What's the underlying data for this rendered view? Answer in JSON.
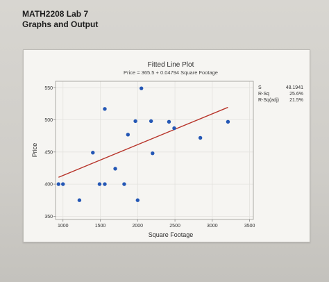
{
  "header": {
    "title": "MATH2208 Lab 7",
    "subtitle": "Graphs and Output"
  },
  "chart_data": {
    "type": "scatter",
    "title": "Fitted Line Plot",
    "subtitle": "Price = 365.5 + 0.04794 Square Footage",
    "xlabel": "Square Footage",
    "ylabel": "Price",
    "xlim": [
      900,
      3550
    ],
    "ylim": [
      345,
      560
    ],
    "xticks": [
      "1000",
      "1500",
      "2000",
      "2500",
      "3000",
      "3500"
    ],
    "xtick_values": [
      1000,
      1500,
      2000,
      2500,
      3000,
      3500
    ],
    "yticks": [
      "350",
      "400",
      "450",
      "500",
      "550"
    ],
    "ytick_values": [
      350,
      400,
      450,
      500,
      550
    ],
    "grid": true,
    "points": {
      "x": [
        940,
        1000,
        1220,
        1400,
        1490,
        1560,
        1560,
        1700,
        1820,
        1870,
        1970,
        2000,
        2050,
        2180,
        2200,
        2420,
        2490,
        2840,
        3210
      ],
      "y": [
        400,
        400,
        375,
        449,
        400,
        400,
        517,
        424,
        400,
        477,
        498,
        375,
        549,
        498,
        448,
        497,
        487,
        472,
        497
      ],
      "color": "#2457b5"
    },
    "fit_line": {
      "x": [
        940,
        3210
      ],
      "y": [
        410.6,
        519.4
      ],
      "color": "#b8352b"
    },
    "stats": [
      {
        "label": "S",
        "value": "48.1941"
      },
      {
        "label": "R-Sq",
        "value": "25.6%"
      },
      {
        "label": "R-Sq(adj)",
        "value": "21.5%"
      }
    ]
  }
}
